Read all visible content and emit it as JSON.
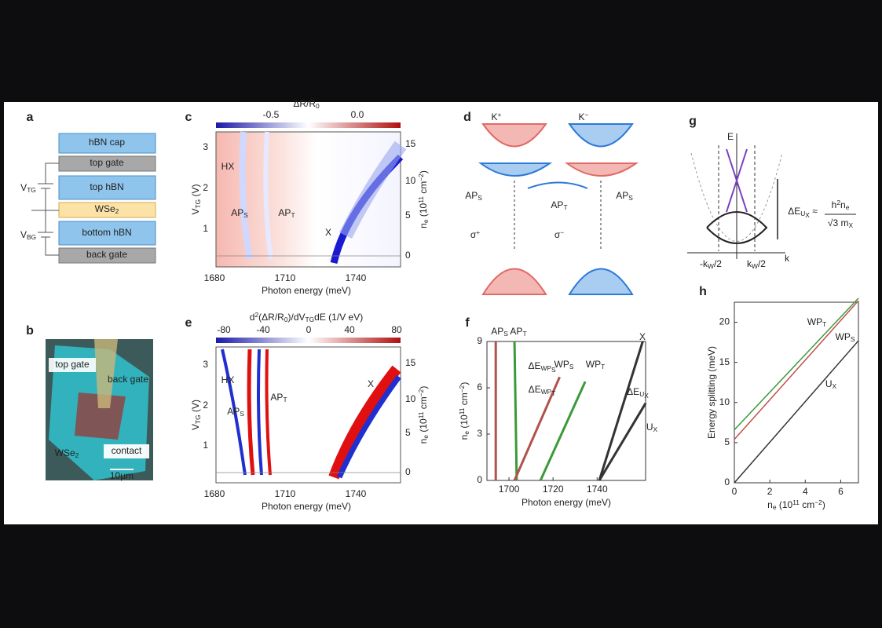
{
  "figure": {
    "a": {
      "label": "a",
      "layers": [
        "hBN cap",
        "top gate",
        "top hBN",
        {
          "main": "WSe",
          "sub": "2"
        },
        "bottom hBN",
        "back gate"
      ],
      "vtg": {
        "main": "V",
        "sub": "TG"
      },
      "vbg": {
        "main": "V",
        "sub": "BG"
      }
    },
    "b": {
      "label": "b",
      "texts": [
        "top gate",
        "back gate",
        {
          "main": "WSe",
          "sub": "2"
        },
        "contact",
        "10μm"
      ]
    },
    "c": {
      "label": "c",
      "colorbar_label": {
        "main": "ΔR/R",
        "sub": "0"
      },
      "colorbar_ticks": [
        "-0.5",
        "0.0"
      ],
      "xticks": [
        "1680",
        "1710",
        "1740"
      ],
      "yticks": [
        "1",
        "2",
        "3"
      ],
      "y2ticks": [
        "0",
        "5",
        "10",
        "15"
      ],
      "xlabel": "Photon energy (meV)",
      "ylabel": {
        "main": "V",
        "sub": "TG",
        "rest": " (V)"
      },
      "y2label": {
        "main": "n",
        "sub": "e",
        "rest": " (10",
        "sup": "11",
        "rest2": " cm",
        "sup2": "−2",
        "end": ")"
      },
      "annotations": [
        "HX",
        {
          "main": "AP",
          "sub": "S"
        },
        {
          "main": "AP",
          "sub": "T"
        },
        "X"
      ]
    },
    "d": {
      "label": "d",
      "valleys": [
        {
          "main": "K",
          "sup": "+"
        },
        {
          "main": "K",
          "sup": "−"
        }
      ],
      "transitions": [
        {
          "main": "AP",
          "sub": "S"
        },
        {
          "main": "AP",
          "sub": "T"
        },
        {
          "main": "AP",
          "sub": "S"
        }
      ],
      "polarizations": [
        {
          "main": "σ",
          "sup": "+"
        },
        {
          "main": "σ",
          "sup": "−"
        }
      ]
    },
    "e": {
      "label": "e",
      "colorbar_label": {
        "main": "d",
        "sup": "2",
        "rest": "(ΔR/R",
        "sub": "0",
        "rest2": ")/dV",
        "sub2": "TG",
        "rest3": "dE (1/V eV)"
      },
      "colorbar_ticks": [
        "-80",
        "-40",
        "0",
        "40",
        "80"
      ],
      "xticks": [
        "1680",
        "1710",
        "1740"
      ],
      "yticks": [
        "1",
        "2",
        "3"
      ],
      "y2ticks": [
        "0",
        "5",
        "10",
        "15"
      ],
      "xlabel": "Photon energy (meV)",
      "ylabel": {
        "main": "V",
        "sub": "TG",
        "rest": " (V)"
      },
      "y2label": {
        "main": "n",
        "sub": "e",
        "rest": " (10",
        "sup": "11",
        "rest2": " cm",
        "sup2": "−2",
        "end": ")"
      },
      "annotations": [
        "HX",
        {
          "main": "AP",
          "sub": "S"
        },
        {
          "main": "AP",
          "sub": "T"
        },
        "X"
      ]
    },
    "g": {
      "label": "g",
      "energy_axis": "E",
      "momentum_axis": "k",
      "k_ticks": [
        {
          "main": "-k",
          "sub": "W",
          "rest": "/2"
        },
        {
          "main": "k",
          "sub": "W",
          "rest": "/2"
        }
      ],
      "formula_lhs": {
        "main": "ΔE",
        "sub": "U",
        "subsub": "X",
        "rest": " ≈"
      },
      "formula_numerator": {
        "main": "h",
        "sup": "2",
        "mid": "n",
        "sub": "e"
      },
      "formula_denominator": {
        "main": "√3 m",
        "sub": "X"
      }
    },
    "f": {
      "label": "f"
    },
    "h": {
      "label": "h"
    }
  },
  "chart_data": [
    {
      "type": "line",
      "xlim": [
        1690,
        1762
      ],
      "ylim": [
        0,
        9
      ],
      "xticks": [
        1700,
        1720,
        1740
      ],
      "yticks": [
        0,
        3,
        6,
        9
      ],
      "xlabel": "Photon energy (meV)",
      "ylabel": {
        "main": "n",
        "sub": "e",
        "rest": " (10",
        "sup": "11",
        "rest2": " cm",
        "sup2": "−2",
        "end": ")"
      },
      "series": [
        {
          "name": {
            "main": "AP",
            "sub": "S"
          },
          "color": "#b0524e",
          "x": [
            1694,
            1694
          ],
          "values": [
            0,
            9
          ]
        },
        {
          "name": {
            "main": "AP",
            "sub": "T"
          },
          "color": "#3a9a3a",
          "x": [
            1703.5,
            1702.5
          ],
          "values": [
            0,
            9
          ]
        },
        {
          "name": {
            "main": "WP",
            "sub": "S"
          },
          "color": "#b0524e",
          "x": [
            1702.5,
            1723
          ],
          "values": [
            0,
            6.7
          ]
        },
        {
          "name": {
            "main": "WP",
            "sub": "T"
          },
          "color": "#3a9a3a",
          "x": [
            1714.3,
            1734.6
          ],
          "values": [
            0,
            6.4
          ]
        },
        {
          "name": "X",
          "color": "#333333",
          "x": [
            1741,
            1760.7
          ],
          "values": [
            0,
            9
          ]
        },
        {
          "name": {
            "main": "U",
            "sub": "X"
          },
          "color": "#333333",
          "x": [
            1741,
            1762
          ],
          "values": [
            0,
            5
          ]
        }
      ],
      "annotations": [
        {
          "main": "ΔE",
          "sub": "WP",
          "subsub": "S"
        },
        {
          "main": "ΔE",
          "sub": "WP",
          "subsub": "T"
        },
        {
          "main": "ΔE",
          "sub": "U",
          "subsub": "X"
        }
      ]
    },
    {
      "type": "line",
      "xlim": [
        0,
        7
      ],
      "ylim": [
        0,
        22.5
      ],
      "xticks": [
        0,
        2,
        4,
        6
      ],
      "yticks": [
        0,
        5,
        10,
        15,
        20
      ],
      "xlabel": {
        "main": "n",
        "sub": "e",
        "rest": " (10",
        "sup": "11",
        "rest2": " cm",
        "sup2": "−2",
        "end": ")"
      },
      "ylabel": "Energy splitting (meV)",
      "series": [
        {
          "name": {
            "main": "WP",
            "sub": "T"
          },
          "color": "#3a9a3a",
          "x": [
            0,
            7
          ],
          "values": [
            6.6,
            23
          ]
        },
        {
          "name": {
            "main": "WP",
            "sub": "S"
          },
          "color": "#c0504d",
          "x": [
            0,
            7
          ],
          "values": [
            5.4,
            22.7
          ]
        },
        {
          "name": {
            "main": "U",
            "sub": "X"
          },
          "color": "#333333",
          "x": [
            0,
            7
          ],
          "values": [
            0,
            17.7
          ]
        }
      ]
    }
  ]
}
